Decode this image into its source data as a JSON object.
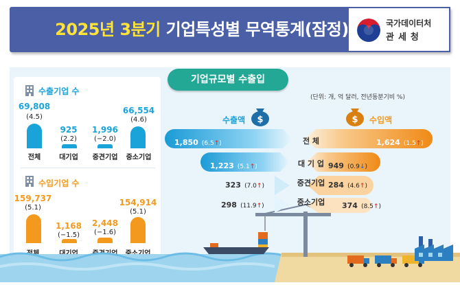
{
  "header": {
    "title_year": "2025년 3분기",
    "title_rest": "기업특성별 무역통계(잠정)",
    "agency_line1": "국가데이터처",
    "agency_line2": "관세청"
  },
  "colors": {
    "header_bg": "#4a5fa6",
    "title_accent": "#ffe33a",
    "export_blue": "#1aa3d9",
    "import_orange": "#f39a1e",
    "tag_green": "#24a896"
  },
  "exporters": {
    "label": "수출기업 수",
    "items": [
      {
        "category": "전체",
        "value": "69,808",
        "change": "(4.5)"
      },
      {
        "category": "대기업",
        "value": "925",
        "change": "(2.2)"
      },
      {
        "category": "중견기업",
        "value": "1,996",
        "change": "(−2.0)"
      },
      {
        "category": "중소기업",
        "value": "66,554",
        "change": "(4.6)"
      }
    ]
  },
  "importers": {
    "label": "수입기업 수",
    "items": [
      {
        "category": "전체",
        "value": "159,737",
        "change": "(5.1)"
      },
      {
        "category": "대기업",
        "value": "1,168",
        "change": "(−1.5)"
      },
      {
        "category": "중견기업",
        "value": "2,448",
        "change": "(−1.6)"
      },
      {
        "category": "중소기업",
        "value": "154,914",
        "change": "(5.1)"
      }
    ]
  },
  "trade": {
    "tag": "기업규모별 수출입",
    "unit": "(단위: 개, 억 달러, 전년동분기비 %)",
    "export_label": "수출액",
    "import_label": "수입액",
    "rows": [
      {
        "label": "전   체",
        "export": "1,850",
        "export_change": "(6.5",
        "export_dir": "up",
        "import": "1,624",
        "import_change": "(1.5",
        "import_dir": "up"
      },
      {
        "label": "대 기 업",
        "export": "1,223",
        "export_change": "(5.1",
        "export_dir": "up",
        "import": "949",
        "import_change": "(0.9",
        "import_dir": "down"
      },
      {
        "label": "중견기업",
        "export": "323",
        "export_change": "(7.0",
        "export_dir": "up",
        "import": "284",
        "import_change": "(4.6",
        "import_dir": "up"
      },
      {
        "label": "중소기업",
        "export": "298",
        "export_change": "(11.9",
        "export_dir": "up",
        "import": "374",
        "import_change": "(8.5",
        "import_dir": "up"
      }
    ],
    "close_paren": ")",
    "arrow_up": "↑",
    "arrow_down": "↓"
  }
}
